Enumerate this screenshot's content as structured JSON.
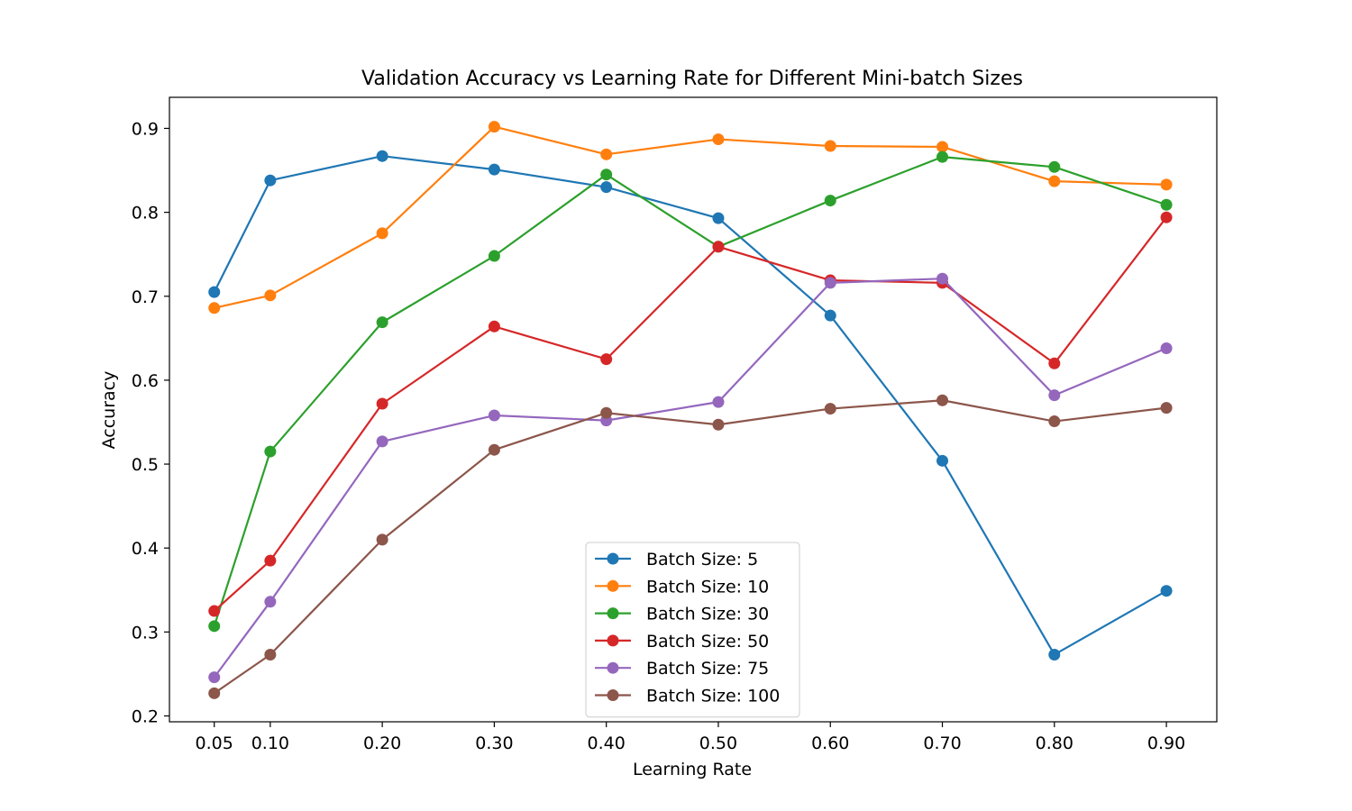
{
  "chart_data": {
    "type": "line",
    "title": "Validation Accuracy vs Learning Rate for Different Mini-batch Sizes",
    "xlabel": "Learning Rate",
    "ylabel": "Accuracy",
    "x": [
      0.05,
      0.1,
      0.2,
      0.3,
      0.4,
      0.5,
      0.6,
      0.7,
      0.8,
      0.9
    ],
    "x_tick_labels": [
      "0.05",
      "0.10",
      "0.20",
      "0.30",
      "0.40",
      "0.50",
      "0.60",
      "0.70",
      "0.80",
      "0.90"
    ],
    "y_ticks": [
      0.2,
      0.3,
      0.4,
      0.5,
      0.6,
      0.7,
      0.8,
      0.9
    ],
    "y_tick_labels": [
      "0.2",
      "0.3",
      "0.4",
      "0.5",
      "0.6",
      "0.7",
      "0.8",
      "0.9"
    ],
    "xlim": [
      0.01,
      0.945
    ],
    "ylim": [
      0.193,
      0.937
    ],
    "grid": false,
    "legend_position": "lower-center",
    "markers": true,
    "series": [
      {
        "name": "Batch Size: 5",
        "color": "#1f77b4",
        "values": [
          0.705,
          0.838,
          0.867,
          0.851,
          0.83,
          0.793,
          0.677,
          0.504,
          0.273,
          0.349
        ]
      },
      {
        "name": "Batch Size: 10",
        "color": "#ff7f0e",
        "values": [
          0.686,
          0.701,
          0.775,
          0.902,
          0.869,
          0.887,
          0.879,
          0.878,
          0.837,
          0.833
        ]
      },
      {
        "name": "Batch Size: 30",
        "color": "#2ca02c",
        "values": [
          0.307,
          0.515,
          0.669,
          0.748,
          0.845,
          0.759,
          0.814,
          0.866,
          0.854,
          0.809
        ]
      },
      {
        "name": "Batch Size: 50",
        "color": "#d62728",
        "values": [
          0.325,
          0.385,
          0.572,
          0.664,
          0.625,
          0.759,
          0.719,
          0.716,
          0.62,
          0.794
        ]
      },
      {
        "name": "Batch Size: 75",
        "color": "#9467bd",
        "values": [
          0.246,
          0.336,
          0.527,
          0.558,
          0.552,
          0.574,
          0.716,
          0.721,
          0.582,
          0.638
        ]
      },
      {
        "name": "Batch Size: 100",
        "color": "#8c564b",
        "values": [
          0.227,
          0.273,
          0.41,
          0.517,
          0.561,
          0.547,
          0.566,
          0.576,
          0.551,
          0.567
        ]
      }
    ]
  }
}
